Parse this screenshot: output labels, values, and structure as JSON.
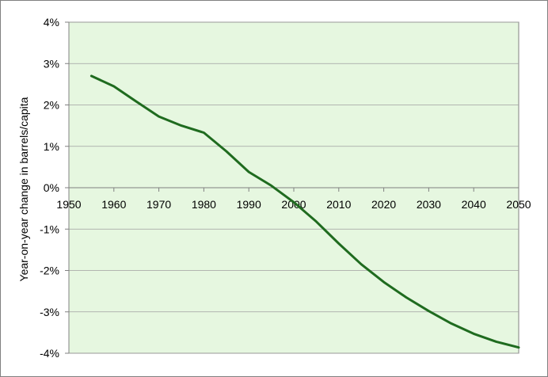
{
  "chart_data": {
    "type": "line",
    "title": "",
    "xlabel": "",
    "ylabel": "Year-on-year change in barrels/capita",
    "xlim": [
      1950,
      2050
    ],
    "ylim": [
      -4,
      4
    ],
    "x_ticks": [
      "1950",
      "1960",
      "1970",
      "1980",
      "1990",
      "2000",
      "2010",
      "2020",
      "2030",
      "2040",
      "2050"
    ],
    "y_ticks": [
      "4%",
      "3%",
      "2%",
      "1%",
      "0%",
      "-1%",
      "-2%",
      "-3%",
      "-4%"
    ],
    "grid": true,
    "legend": "none",
    "colors": {
      "plot_background": "#e6f7e0",
      "line": "#1f6b1f",
      "grid": "#a0a0a0"
    },
    "series": [
      {
        "x": [
          1955,
          1960,
          1965,
          1970,
          1975,
          1980,
          1985,
          1990,
          1995,
          2000,
          2005,
          2010,
          2015,
          2020,
          2025,
          2030,
          2035,
          2040,
          2045,
          2050
        ],
        "y": [
          2.7,
          2.45,
          2.08,
          1.72,
          1.5,
          1.33,
          0.88,
          0.38,
          0.05,
          -0.35,
          -0.82,
          -1.35,
          -1.85,
          -2.28,
          -2.65,
          -2.98,
          -3.28,
          -3.53,
          -3.72,
          -3.86
        ]
      }
    ]
  }
}
